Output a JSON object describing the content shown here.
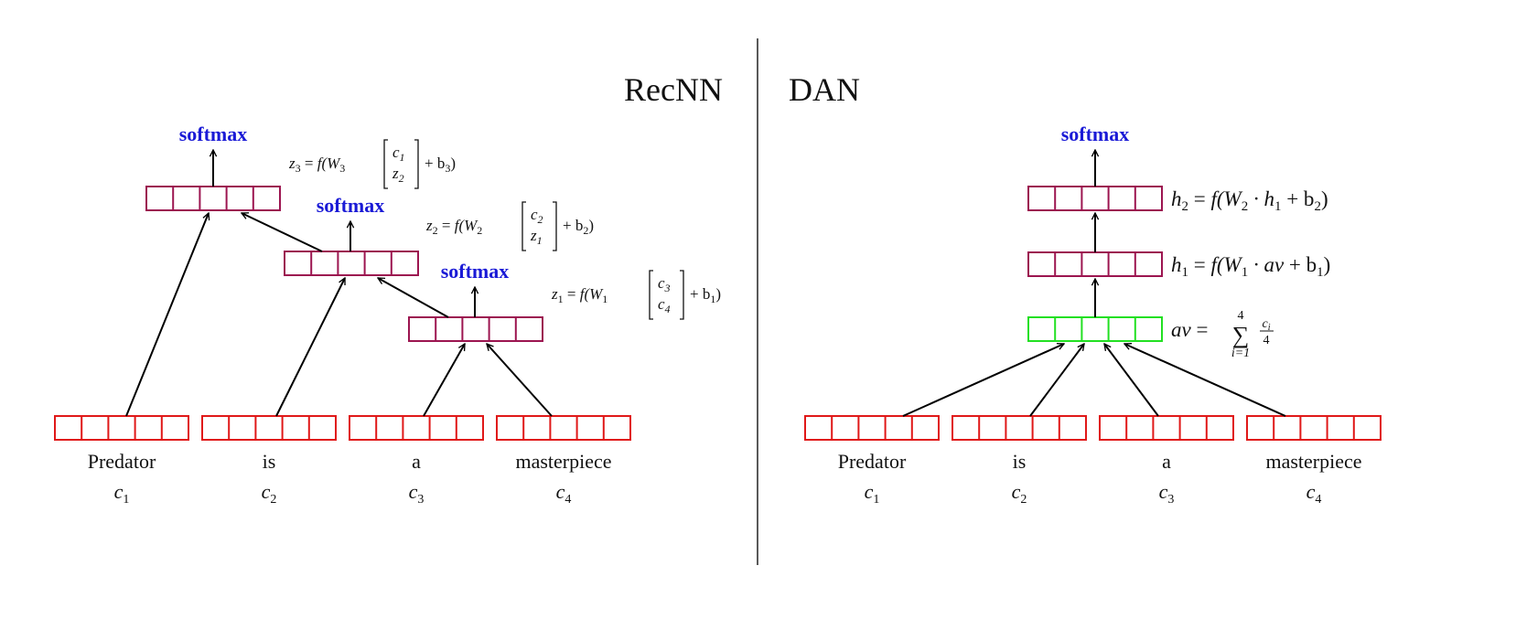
{
  "panels": {
    "recnn": {
      "title": "RecNN",
      "softmax_label": "softmax",
      "words": [
        {
          "word": "Predator",
          "symbol": "c",
          "index": "1"
        },
        {
          "word": "is",
          "symbol": "c",
          "index": "2"
        },
        {
          "word": "a",
          "symbol": "c",
          "index": "3"
        },
        {
          "word": "masterpiece",
          "symbol": "c",
          "index": "4"
        }
      ],
      "equations": {
        "z3": {
          "lhs": "z",
          "lhs_idx": "3",
          "eq": " = ",
          "f": "f(W",
          "w_idx": "3",
          "top": "c",
          "top_idx": "1",
          "bot": "z",
          "bot_idx": "2",
          "tail": "+ b",
          "tail_idx": "3",
          "close": ")"
        },
        "z2": {
          "lhs": "z",
          "lhs_idx": "2",
          "eq": " = ",
          "f": "f(W",
          "w_idx": "2",
          "top": "c",
          "top_idx": "2",
          "bot": "z",
          "bot_idx": "1",
          "tail": "+ b",
          "tail_idx": "2",
          "close": ")"
        },
        "z1": {
          "lhs": "z",
          "lhs_idx": "1",
          "eq": " = ",
          "f": "f(W",
          "w_idx": "1",
          "top": "c",
          "top_idx": "3",
          "bot": "c",
          "bot_idx": "4",
          "tail": "+ b",
          "tail_idx": "1",
          "close": ")"
        }
      }
    },
    "dan": {
      "title": "DAN",
      "softmax_label": "softmax",
      "words": [
        {
          "word": "Predator",
          "symbol": "c",
          "index": "1"
        },
        {
          "word": "is",
          "symbol": "c",
          "index": "2"
        },
        {
          "word": "a",
          "symbol": "c",
          "index": "3"
        },
        {
          "word": "masterpiece",
          "symbol": "c",
          "index": "4"
        }
      ],
      "equations": {
        "h2": {
          "lhs": "h",
          "lhs_idx": "2",
          "eq": " = ",
          "f": "f(W",
          "w_idx": "2",
          "mid": " · h",
          "mid_idx": "1",
          "tail": " + b",
          "tail_idx": "2",
          "close": ")"
        },
        "h1": {
          "lhs": "h",
          "lhs_idx": "1",
          "eq": " = ",
          "f": "f(W",
          "w_idx": "1",
          "mid": " · av",
          "tail": " + b",
          "tail_idx": "1",
          "close": ")"
        },
        "av": {
          "lhs": "av",
          "eq": " = ",
          "sum_top": "4",
          "sum_bot": "i=1",
          "frac_num": "c",
          "frac_num_idx": "i",
          "frac_den": "4"
        }
      }
    }
  },
  "colors": {
    "word_box": "#e01818",
    "hidden_box": "#9c1550",
    "avg_box": "#22e022",
    "softmax": "#1a1ad6",
    "divider": "#222222"
  }
}
